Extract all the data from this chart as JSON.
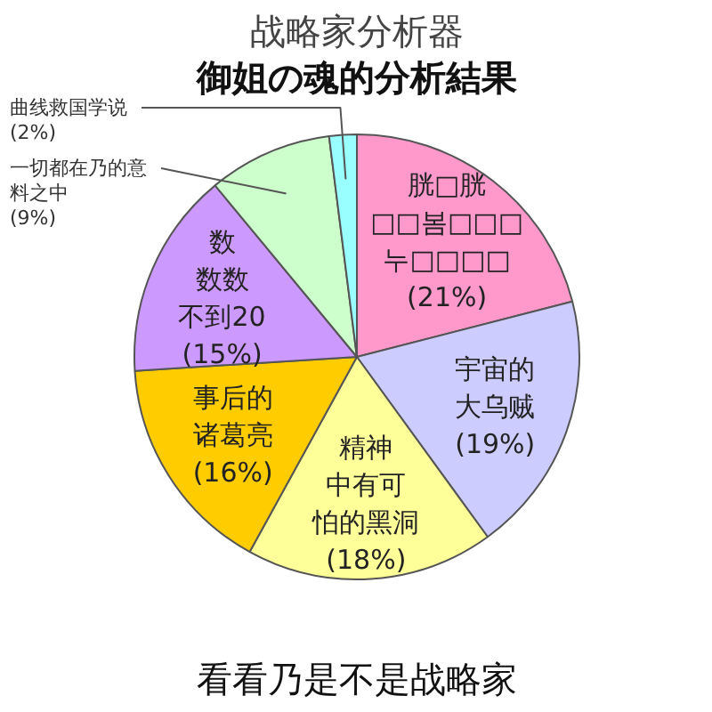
{
  "chart_data": {
    "type": "pie",
    "title": "战略家分析器",
    "subtitle": "御姐の魂的分析結果",
    "categories": [
      "胱□胱□□봄□□□누□□□□",
      "宇宙的大乌贼",
      "精神中有可怕的黑洞",
      "事后的诸葛亮",
      "数数数不到20",
      "一切都在乃的意料之中",
      "曲线救国学说"
    ],
    "values": [
      21,
      19,
      18,
      16,
      15,
      9,
      2
    ],
    "colors": [
      "#ff99cc",
      "#ccccff",
      "#ffff99",
      "#ffcc00",
      "#cc99ff",
      "#ccffcc",
      "#99ffff"
    ],
    "value_labels": [
      "(21%)",
      "(19%)",
      "(18%)",
      "(16%)",
      "(15%)",
      "(9%)",
      "(2%)"
    ],
    "annotations": [
      "看看乃是不是战略家"
    ]
  }
}
